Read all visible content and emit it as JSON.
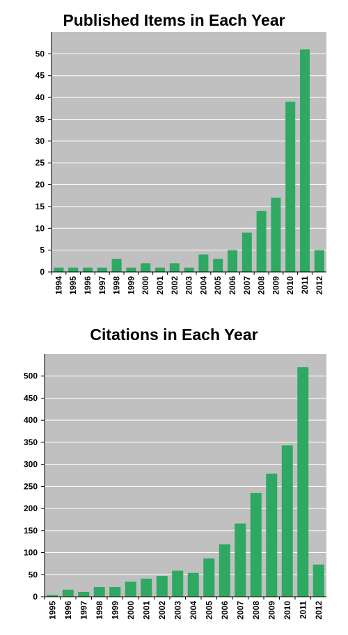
{
  "colors": {
    "bar": "#2ea862",
    "plot_bg": "#c0c0c0",
    "grid": "#ffffff",
    "axis": "#000000",
    "text": "#000000"
  },
  "chart_data": [
    {
      "type": "bar",
      "title": "Published Items in Each Year",
      "xlabel": "",
      "ylabel": "",
      "grid": true,
      "ylim": [
        0,
        55
      ],
      "yticks": [
        0,
        5,
        10,
        15,
        20,
        25,
        30,
        35,
        40,
        45,
        50
      ],
      "categories": [
        "1994",
        "1995",
        "1996",
        "1997",
        "1998",
        "1999",
        "2000",
        "2001",
        "2002",
        "2003",
        "2004",
        "2005",
        "2006",
        "2007",
        "2008",
        "2009",
        "2010",
        "2011",
        "2012"
      ],
      "values": [
        1,
        1,
        1,
        1,
        3,
        1,
        2,
        1,
        2,
        1,
        4,
        3,
        5,
        9,
        14,
        17,
        39,
        51,
        5
      ]
    },
    {
      "type": "bar",
      "title": "Citations in Each Year",
      "xlabel": "",
      "ylabel": "",
      "grid": true,
      "ylim": [
        0,
        550
      ],
      "yticks": [
        0,
        50,
        100,
        150,
        200,
        250,
        300,
        350,
        400,
        450,
        500
      ],
      "categories": [
        "1995",
        "1996",
        "1997",
        "1998",
        "1999",
        "2000",
        "2001",
        "2002",
        "2003",
        "2004",
        "2005",
        "2006",
        "2007",
        "2008",
        "2009",
        "2010",
        "2011",
        "2012"
      ],
      "values": [
        4,
        16,
        11,
        22,
        22,
        34,
        41,
        47,
        59,
        54,
        87,
        119,
        166,
        235,
        279,
        343,
        520,
        73
      ]
    }
  ]
}
